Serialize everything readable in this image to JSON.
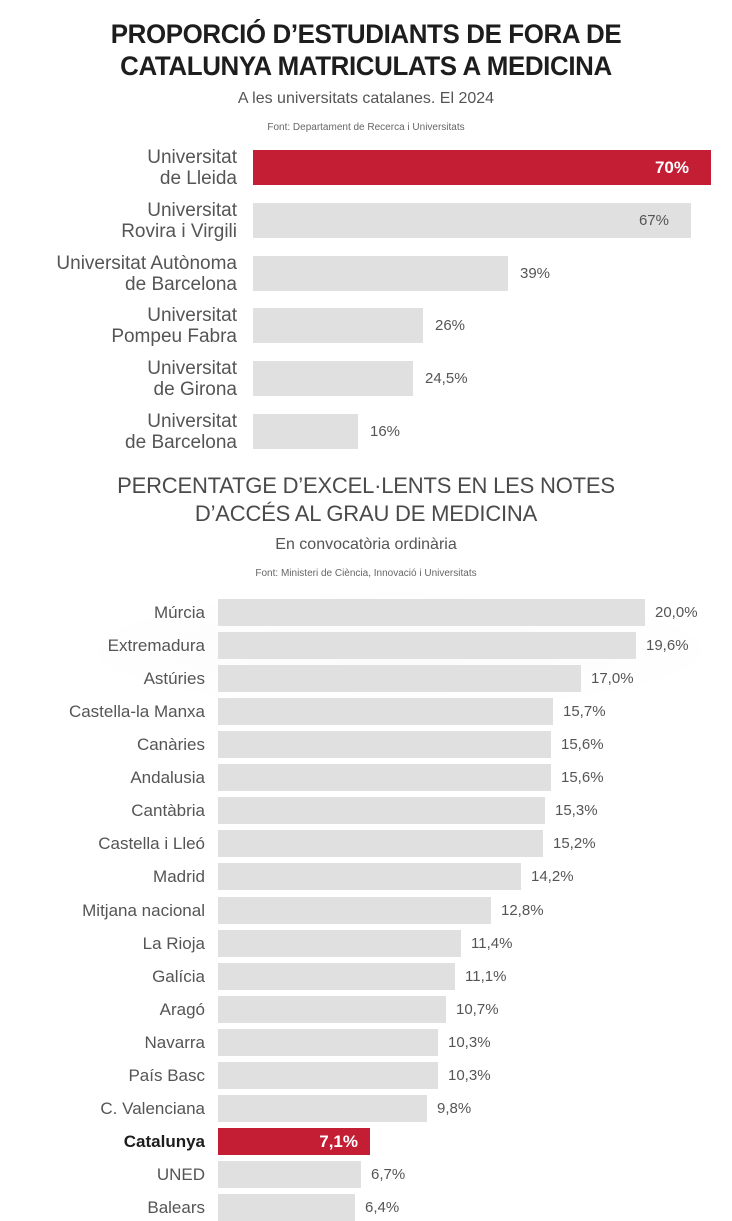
{
  "chart_data": [
    {
      "type": "bar",
      "orientation": "horizontal",
      "title": "PROPORCIÓ D’ESTUDIANTS DE FORA DE CATALUNYA MATRICULATS A MEDICINA",
      "title_lines": [
        "PROPORCIÓ D’ESTUDIANTS DE FORA DE",
        "CATALUNYA MATRICULATS A MEDICINA"
      ],
      "subtitle": "A les universitats catalanes. El 2024",
      "source": "Font: Departament de Recerca i Universitats",
      "xlabel": "",
      "ylabel": "",
      "grid": false,
      "legend": null,
      "highlight_color": "#c41e35",
      "bar_color": "#e0e0e0",
      "categories": [
        "Universitat de Lleida",
        "Universitat Rovira i Virgili",
        "Universitat Autònoma de Barcelona",
        "Universitat Pompeu Fabra",
        "Universitat de Girona",
        "Universitat de Barcelona"
      ],
      "values": [
        70,
        67,
        39,
        26,
        24.5,
        16
      ],
      "unit": "%",
      "rows": [
        {
          "label": "Universitat\nde Lleida",
          "value": 70,
          "display": "70%",
          "highlight": true,
          "label_inside": true
        },
        {
          "label": "Universitat\nRovira i Virgili",
          "value": 67,
          "display": "67%",
          "highlight": false,
          "label_inside": true
        },
        {
          "label": "Universitat Autònoma\nde Barcelona",
          "value": 39,
          "display": "39%",
          "highlight": false,
          "label_inside": false
        },
        {
          "label": "Universitat\nPompeu Fabra",
          "value": 26,
          "display": "26%",
          "highlight": false,
          "label_inside": false
        },
        {
          "label": "Universitat\nde Girona",
          "value": 24.5,
          "display": "24,5%",
          "highlight": false,
          "label_inside": false
        },
        {
          "label": "Universitat\nde Barcelona",
          "value": 16,
          "display": "16%",
          "highlight": false,
          "label_inside": false
        }
      ]
    },
    {
      "type": "bar",
      "orientation": "horizontal",
      "title": "PERCENTATGE D’EXCEL·LENTS EN LES NOTES D’ACCÉS AL GRAU DE MEDICINA",
      "title_lines": [
        "PERCENTATGE D’EXCEL·LENTS EN LES NOTES",
        "D’ACCÉS AL GRAU DE MEDICINA"
      ],
      "subtitle": "En convocatòria ordinària",
      "source": "Font: Ministeri de Ciència, Innovació i Universitats",
      "xlabel": "",
      "ylabel": "",
      "grid": false,
      "legend": null,
      "highlight_color": "#c41e35",
      "bar_color": "#e0e0e0",
      "categories": [
        "Múrcia",
        "Extremadura",
        "Astúries",
        "Castella-la Manxa",
        "Canàries",
        "Andalusia",
        "Cantàbria",
        "Castella i Lleó",
        "Madrid",
        "Mitjana nacional",
        "La Rioja",
        "Galícia",
        "Aragó",
        "Navarra",
        "País Basc",
        "C. Valenciana",
        "Catalunya",
        "UNED",
        "Balears"
      ],
      "values": [
        20.0,
        19.6,
        17.0,
        15.7,
        15.6,
        15.6,
        15.3,
        15.2,
        14.2,
        12.8,
        11.4,
        11.1,
        10.7,
        10.3,
        10.3,
        9.8,
        7.1,
        6.7,
        6.4
      ],
      "unit": "%",
      "rows": [
        {
          "label": "Múrcia",
          "value": 20.0,
          "display": "20,0%",
          "highlight": false
        },
        {
          "label": "Extremadura",
          "value": 19.6,
          "display": "19,6%",
          "highlight": false
        },
        {
          "label": "Astúries",
          "value": 17.0,
          "display": "17,0%",
          "highlight": false
        },
        {
          "label": "Castella-la Manxa",
          "value": 15.7,
          "display": "15,7%",
          "highlight": false
        },
        {
          "label": "Canàries",
          "value": 15.6,
          "display": "15,6%",
          "highlight": false
        },
        {
          "label": "Andalusia",
          "value": 15.6,
          "display": "15,6%",
          "highlight": false
        },
        {
          "label": "Cantàbria",
          "value": 15.3,
          "display": "15,3%",
          "highlight": false
        },
        {
          "label": "Castella i Lleó",
          "value": 15.2,
          "display": "15,2%",
          "highlight": false
        },
        {
          "label": "Madrid",
          "value": 14.2,
          "display": "14,2%",
          "highlight": false
        },
        {
          "label": "Mitjana nacional",
          "value": 12.8,
          "display": "12,8%",
          "highlight": false
        },
        {
          "label": "La Rioja",
          "value": 11.4,
          "display": "11,4%",
          "highlight": false
        },
        {
          "label": "Galícia",
          "value": 11.1,
          "display": "11,1%",
          "highlight": false
        },
        {
          "label": "Aragó",
          "value": 10.7,
          "display": "10,7%",
          "highlight": false
        },
        {
          "label": "Navarra",
          "value": 10.3,
          "display": "10,3%",
          "highlight": false
        },
        {
          "label": "País Basc",
          "value": 10.3,
          "display": "10,3%",
          "highlight": false
        },
        {
          "label": "C. Valenciana",
          "value": 9.8,
          "display": "9,8%",
          "highlight": false
        },
        {
          "label": "Catalunya",
          "value": 7.1,
          "display": "7,1%",
          "highlight": true,
          "label_inside": true
        },
        {
          "label": "UNED",
          "value": 6.7,
          "display": "6,7%",
          "highlight": false
        },
        {
          "label": "Balears",
          "value": 6.4,
          "display": "6,4%",
          "highlight": false
        }
      ]
    }
  ]
}
